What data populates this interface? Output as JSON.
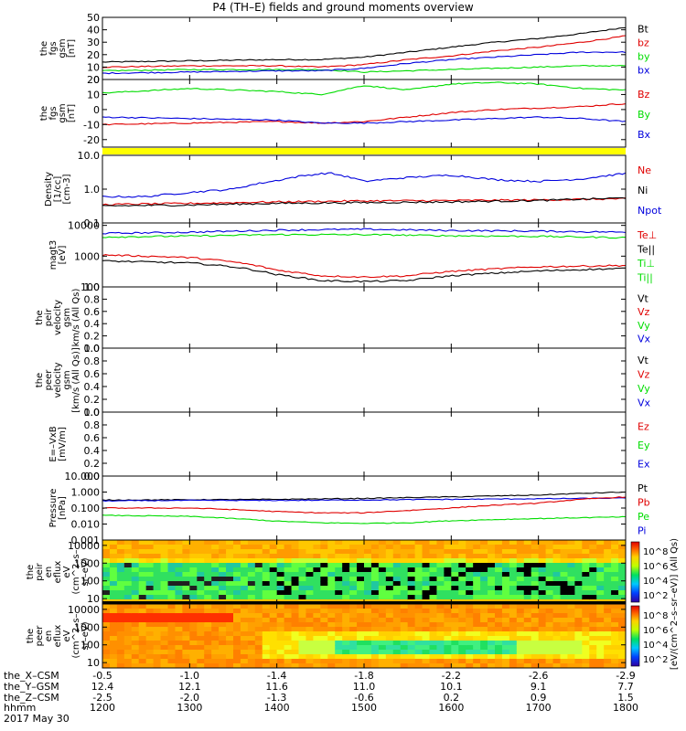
{
  "title": "P4 (TH–E) fields and ground moments overview",
  "colors": {
    "black": "#000000",
    "red": "#e00000",
    "green": "#00dd00",
    "blue": "#0000dd",
    "yellow": "#ffff00"
  },
  "chart_data": {
    "type": "line",
    "x": {
      "hhmm": [
        "1200",
        "1300",
        "1400",
        "1500",
        "1600",
        "1700",
        "1800"
      ],
      "range": [
        1200,
        1800
      ],
      "rows": [
        {
          "label": "the_X–CSM",
          "values": [
            "-0.5",
            "-1.0",
            "-1.4",
            "-1.8",
            "-2.2",
            "-2.6",
            "-2.9"
          ]
        },
        {
          "label": "the_Y–GSM",
          "values": [
            "12.4",
            "12.1",
            "11.6",
            "11.0",
            "10.1",
            "9.1",
            "7.7"
          ]
        },
        {
          "label": "the_Z–CSM",
          "values": [
            "-2.5",
            "-2.0",
            "-1.3",
            "-0.6",
            "0.2",
            "0.9",
            "1.5"
          ]
        },
        {
          "label": "hhmm",
          "values": [
            "1200",
            "1300",
            "1400",
            "1500",
            "1600",
            "1700",
            "1800"
          ]
        }
      ],
      "date": "2017 May 30"
    },
    "panels": [
      {
        "id": "fgs-mag",
        "ylabel": [
          "the",
          "fgs",
          "gsm",
          "[nT]"
        ],
        "ylim": [
          0,
          50
        ],
        "scale": "linear",
        "ticks": [
          "0",
          "10",
          "20",
          "30",
          "40",
          "50"
        ],
        "tick_values": [
          0,
          10,
          20,
          30,
          40,
          50
        ],
        "legend": [
          {
            "text": "Bt",
            "color": "#000000"
          },
          {
            "text": "bz",
            "color": "#e00000"
          },
          {
            "text": "by",
            "color": "#00dd00"
          },
          {
            "text": "bx",
            "color": "#0000dd"
          }
        ],
        "series": [
          {
            "color": "#000000",
            "x": [
              1200,
              1300,
              1400,
              1450,
              1500,
              1550,
              1600,
              1650,
              1700,
              1750,
              1800
            ],
            "y": [
              14,
              15,
              16,
              16,
              18,
              22,
              26,
              30,
              33,
              37,
              42
            ]
          },
          {
            "color": "#e00000",
            "x": [
              1200,
              1300,
              1400,
              1450,
              1500,
              1550,
              1600,
              1650,
              1700,
              1750,
              1800
            ],
            "y": [
              10,
              11,
              11,
              10,
              12,
              16,
              19,
              23,
              26,
              30,
              35
            ]
          },
          {
            "color": "#00dd00",
            "x": [
              1200,
              1300,
              1400,
              1450,
              1500,
              1550,
              1600,
              1650,
              1700,
              1750,
              1800
            ],
            "y": [
              7,
              8,
              8,
              8,
              6,
              7,
              8,
              9,
              10,
              11,
              11
            ]
          },
          {
            "color": "#0000dd",
            "x": [
              1200,
              1300,
              1400,
              1450,
              1500,
              1550,
              1600,
              1650,
              1700,
              1750,
              1800
            ],
            "y": [
              5,
              6,
              7,
              7,
              9,
              13,
              16,
              18,
              20,
              22,
              22
            ]
          }
        ]
      },
      {
        "id": "fgs-comp",
        "ylabel": [
          "the",
          "fgs",
          "gsm",
          "[nT]"
        ],
        "ylim": [
          -25,
          20
        ],
        "scale": "linear",
        "ticks": [
          "-20",
          "-10",
          "0",
          "10",
          "20"
        ],
        "tick_values": [
          -20,
          -10,
          0,
          10,
          20
        ],
        "legend": [
          {
            "text": "Bz",
            "color": "#e00000"
          },
          {
            "text": "By",
            "color": "#00dd00"
          },
          {
            "text": "Bx",
            "color": "#0000dd"
          }
        ],
        "series": [
          {
            "color": "#e00000",
            "x": [
              1200,
              1300,
              1400,
              1450,
              1500,
              1550,
              1600,
              1650,
              1700,
              1750,
              1800
            ],
            "y": [
              -10,
              -9,
              -8,
              -9,
              -8,
              -5,
              -2,
              0,
              1,
              2,
              4
            ]
          },
          {
            "color": "#00dd00",
            "x": [
              1200,
              1300,
              1400,
              1450,
              1500,
              1550,
              1600,
              1650,
              1700,
              1750,
              1800
            ],
            "y": [
              11,
              14,
              12,
              10,
              16,
              13,
              17,
              18,
              17,
              14,
              13
            ]
          },
          {
            "color": "#0000dd",
            "x": [
              1200,
              1300,
              1400,
              1450,
              1500,
              1550,
              1600,
              1650,
              1700,
              1750,
              1800
            ],
            "y": [
              -5,
              -6,
              -7,
              -9,
              -9,
              -8,
              -7,
              -6,
              -5,
              -6,
              -8
            ]
          }
        ]
      },
      {
        "id": "quality-bar",
        "kind": "bar",
        "color": "#ffff00"
      },
      {
        "id": "density",
        "ylabel": [
          "Density",
          "[1/cc]",
          "[cm-3]"
        ],
        "ylim": [
          0.1,
          10
        ],
        "scale": "log",
        "ticks": [
          "0.1",
          "1.0",
          "10.0"
        ],
        "tick_values": [
          0.1,
          1,
          10
        ],
        "legend": [
          {
            "text": "Ne",
            "color": "#e00000"
          },
          {
            "text": "Ni",
            "color": "#000000"
          },
          {
            "text": "Npot",
            "color": "#0000dd"
          }
        ],
        "series": [
          {
            "color": "#0000dd",
            "x": [
              1200,
              1250,
              1300,
              1350,
              1400,
              1430,
              1460,
              1500,
              1550,
              1600,
              1650,
              1700,
              1750,
              1800
            ],
            "y": [
              0.6,
              0.6,
              0.8,
              1.0,
              1.8,
              2.5,
              3.0,
              1.7,
              2.2,
              2.6,
              1.9,
              1.7,
              2.0,
              2.9
            ]
          },
          {
            "color": "#e00000",
            "x": [
              1200,
              1300,
              1400,
              1500,
              1600,
              1700,
              1800
            ],
            "y": [
              0.35,
              0.38,
              0.42,
              0.45,
              0.46,
              0.48,
              0.52
            ]
          },
          {
            "color": "#000000",
            "x": [
              1200,
              1300,
              1400,
              1500,
              1600,
              1700,
              1800
            ],
            "y": [
              0.32,
              0.34,
              0.38,
              0.4,
              0.42,
              0.46,
              0.55
            ]
          }
        ]
      },
      {
        "id": "temperature",
        "ylabel": [
          "magt3",
          "[eV]"
        ],
        "ylim": [
          100,
          12000
        ],
        "scale": "log",
        "ticks": [
          "100",
          "1000",
          "10000"
        ],
        "tick_values": [
          100,
          1000,
          10000
        ],
        "legend": [
          {
            "text": "Te⊥",
            "color": "#e00000"
          },
          {
            "text": "Te||",
            "color": "#000000"
          },
          {
            "text": "Ti⊥",
            "color": "#00dd00"
          },
          {
            "text": "Ti||",
            "color": "#00dd00"
          }
        ],
        "series": [
          {
            "color": "#0000dd",
            "x": [
              1200,
              1300,
              1400,
              1500,
              1600,
              1700,
              1800
            ],
            "y": [
              5500,
              6000,
              7000,
              7500,
              6800,
              6500,
              6000
            ]
          },
          {
            "color": "#00dd00",
            "x": [
              1200,
              1300,
              1400,
              1500,
              1600,
              1700,
              1800
            ],
            "y": [
              4200,
              4500,
              5000,
              5000,
              4600,
              4400,
              4000
            ]
          },
          {
            "color": "#e00000",
            "x": [
              1200,
              1300,
              1350,
              1400,
              1450,
              1500,
              1550,
              1600,
              1700,
              1800
            ],
            "y": [
              1100,
              900,
              650,
              350,
              230,
              210,
              230,
              320,
              450,
              500
            ]
          },
          {
            "color": "#000000",
            "x": [
              1200,
              1300,
              1350,
              1400,
              1450,
              1500,
              1550,
              1600,
              1700,
              1800
            ],
            "y": [
              700,
              600,
              450,
              250,
              160,
              150,
              160,
              230,
              330,
              400
            ]
          }
        ]
      },
      {
        "id": "ion-velocity",
        "ylabel": [
          "the",
          "peir",
          "velocity",
          "gsm",
          "km/s (All Qs)"
        ],
        "ylim": [
          0,
          1
        ],
        "scale": "linear",
        "ticks": [
          "0.0",
          "0.2",
          "0.4",
          "0.6",
          "0.8",
          "1.0"
        ],
        "tick_values": [
          0,
          0.2,
          0.4,
          0.6,
          0.8,
          1
        ],
        "legend": [
          {
            "text": "Vt",
            "color": "#000000"
          },
          {
            "text": "Vz",
            "color": "#e00000"
          },
          {
            "text": "Vy",
            "color": "#00dd00"
          },
          {
            "text": "Vx",
            "color": "#0000dd"
          }
        ],
        "series": []
      },
      {
        "id": "electron-velocity",
        "ylabel": [
          "the",
          "peer",
          "velocity",
          "gsm",
          "[km/s (All Qs)]"
        ],
        "ylim": [
          0,
          1
        ],
        "scale": "linear",
        "ticks": [
          "0.0",
          "0.2",
          "0.4",
          "0.6",
          "0.8",
          "1.0"
        ],
        "tick_values": [
          0,
          0.2,
          0.4,
          0.6,
          0.8,
          1
        ],
        "legend": [
          {
            "text": "Vt",
            "color": "#000000"
          },
          {
            "text": "Vz",
            "color": "#e00000"
          },
          {
            "text": "Vy",
            "color": "#00dd00"
          },
          {
            "text": "Vx",
            "color": "#0000dd"
          }
        ],
        "series": []
      },
      {
        "id": "efield",
        "ylabel": [
          "E=–VxB",
          "[mV/m]"
        ],
        "ylim": [
          0,
          1
        ],
        "scale": "linear",
        "ticks": [
          "0.0",
          "0.2",
          "0.4",
          "0.6",
          "0.8",
          "1.0"
        ],
        "tick_values": [
          0,
          0.2,
          0.4,
          0.6,
          0.8,
          1
        ],
        "legend": [
          {
            "text": "Ez",
            "color": "#e00000"
          },
          {
            "text": "Ey",
            "color": "#00dd00"
          },
          {
            "text": "Ex",
            "color": "#0000dd"
          }
        ],
        "series": []
      },
      {
        "id": "pressure",
        "ylabel": [
          "Pressure",
          "[nPa]"
        ],
        "ylim": [
          0.001,
          10
        ],
        "scale": "log",
        "ticks": [
          "0.001",
          "0.010",
          "0.100",
          "1.000",
          "10.000"
        ],
        "tick_values": [
          0.001,
          0.01,
          0.1,
          1,
          10
        ],
        "legend": [
          {
            "text": "Pt",
            "color": "#000000"
          },
          {
            "text": "Pb",
            "color": "#e00000"
          },
          {
            "text": "Pe",
            "color": "#00dd00"
          },
          {
            "text": "Pi",
            "color": "#0000dd"
          }
        ],
        "series": [
          {
            "color": "#000000",
            "x": [
              1200,
              1300,
              1400,
              1500,
              1600,
              1700,
              1800
            ],
            "y": [
              0.32,
              0.33,
              0.35,
              0.4,
              0.5,
              0.65,
              1.0
            ]
          },
          {
            "color": "#0000dd",
            "x": [
              1200,
              1300,
              1400,
              1500,
              1600,
              1700,
              1800
            ],
            "y": [
              0.28,
              0.3,
              0.3,
              0.32,
              0.35,
              0.38,
              0.42
            ]
          },
          {
            "color": "#e00000",
            "x": [
              1200,
              1300,
              1350,
              1400,
              1450,
              1500,
              1550,
              1600,
              1700,
              1800
            ],
            "y": [
              0.1,
              0.1,
              0.08,
              0.06,
              0.05,
              0.05,
              0.07,
              0.1,
              0.2,
              0.5
            ]
          },
          {
            "color": "#00dd00",
            "x": [
              1200,
              1300,
              1350,
              1400,
              1450,
              1500,
              1550,
              1600,
              1700,
              1800
            ],
            "y": [
              0.035,
              0.03,
              0.022,
              0.015,
              0.012,
              0.011,
              0.012,
              0.016,
              0.022,
              0.028
            ]
          }
        ]
      },
      {
        "id": "ion-spectrogram",
        "kind": "spectrogram",
        "variant": "ion",
        "ylabel": [
          "the",
          "peir",
          "en",
          "eflux",
          "eV",
          "(cm^2–s–",
          "sr–eV)"
        ],
        "ylim": [
          5,
          20000
        ],
        "scale": "log",
        "ticks": [
          "10",
          "100",
          "1000",
          "10000"
        ],
        "tick_values": [
          10,
          100,
          1000,
          10000
        ]
      },
      {
        "id": "electron-spectrogram",
        "kind": "spectrogram",
        "variant": "electron",
        "ylabel": [
          "the",
          "peer",
          "en",
          "eflux",
          "eV",
          "(cm^2–s–",
          "sr–eV)"
        ],
        "ylim": [
          5,
          20000
        ],
        "scale": "log",
        "ticks": [
          "10",
          "100",
          "1000",
          "10000"
        ],
        "tick_values": [
          10,
          100,
          1000,
          10000
        ]
      }
    ],
    "colorbar": {
      "top_ticks": [
        "10^8",
        "10^6",
        "10^4",
        "10^2"
      ],
      "bottom_ticks": [
        "10^8",
        "10^6",
        "10^4",
        "10^2"
      ],
      "label": "[eV/(cm^2–s–sr–eV)] (All Qs)"
    }
  }
}
